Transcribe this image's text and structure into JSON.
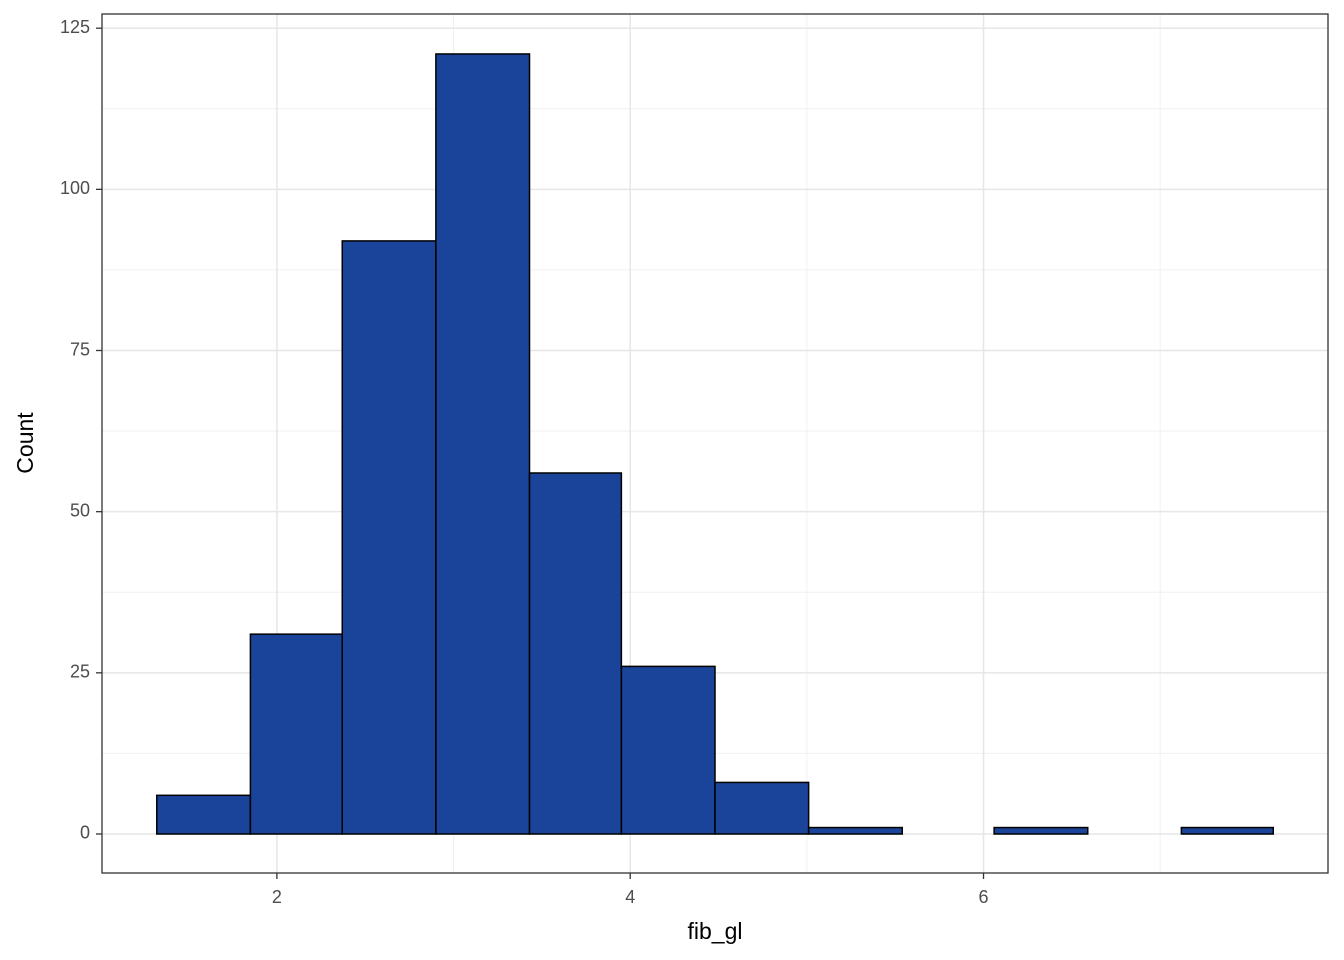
{
  "chart_data": {
    "type": "histogram",
    "x_label": "fib_gl",
    "y_label": "Count",
    "bins": [
      1.32,
      1.85,
      2.37,
      2.9,
      3.43,
      3.95,
      4.48,
      5.01,
      5.54,
      6.06,
      6.59,
      7.12,
      7.64
    ],
    "values": [
      6,
      31,
      92,
      121,
      56,
      26,
      8,
      1,
      0,
      1,
      0,
      1
    ],
    "color": "#1a4499",
    "edge_color": "#000000",
    "xlim": [
      1.01,
      7.95
    ],
    "xticks": [
      2,
      4,
      6
    ],
    "xminorticks": [
      3,
      5,
      7
    ],
    "ylim": [
      -6.05,
      127.2
    ],
    "yticks": [
      0,
      25,
      50,
      75,
      100,
      125
    ],
    "yminorticks": [
      12.5,
      37.5,
      62.5,
      87.5,
      112.5
    ],
    "grid": true
  }
}
